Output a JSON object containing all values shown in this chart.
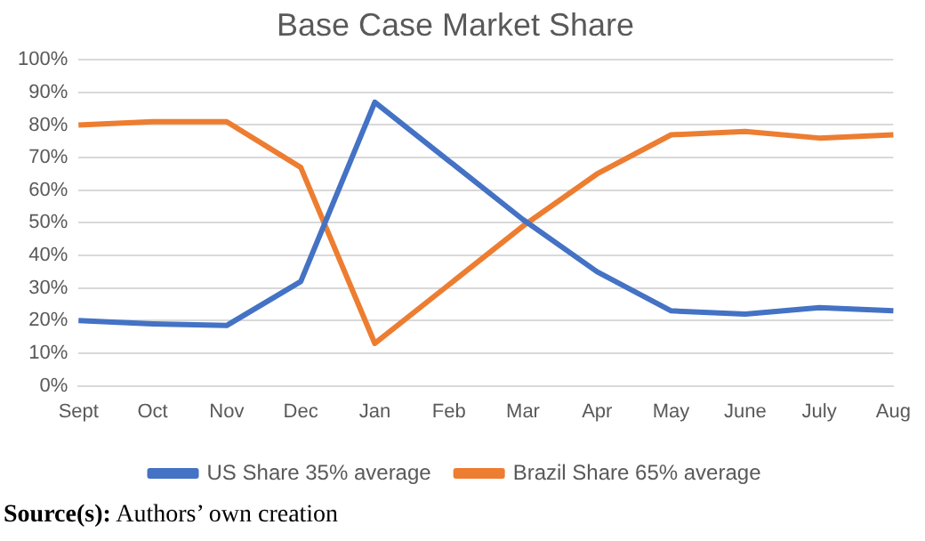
{
  "chart_data": {
    "type": "line",
    "title": "Base Case Market Share",
    "categories": [
      "Sept",
      "Oct",
      "Nov",
      "Dec",
      "Jan",
      "Feb",
      "Mar",
      "Apr",
      "May",
      "June",
      "July",
      "Aug"
    ],
    "series": [
      {
        "name": "US Share 35% average",
        "color": "#4472c4",
        "values": [
          20,
          19,
          18.5,
          32,
          87,
          69,
          51,
          35,
          23,
          22,
          24,
          23
        ]
      },
      {
        "name": "Brazil Share 65% average",
        "color": "#ed7d31",
        "values": [
          80,
          81,
          81,
          67,
          13,
          31,
          49,
          65,
          77,
          78,
          76,
          77
        ]
      }
    ],
    "ylim": [
      0,
      100
    ],
    "yticks": [
      {
        "value": 0,
        "label": "0%"
      },
      {
        "value": 10,
        "label": "10%"
      },
      {
        "value": 20,
        "label": "20%"
      },
      {
        "value": 30,
        "label": "30%"
      },
      {
        "value": 40,
        "label": "40%"
      },
      {
        "value": 50,
        "label": "50%"
      },
      {
        "value": 60,
        "label": "60%"
      },
      {
        "value": 70,
        "label": "70%"
      },
      {
        "value": 80,
        "label": "80%"
      },
      {
        "value": 90,
        "label": "90%"
      },
      {
        "value": 100,
        "label": "100%"
      }
    ],
    "grid": "y",
    "legend": "bottom",
    "marker": "none",
    "line_style": "solid",
    "annotations": [
      "Source(s): Authors’ own creation"
    ]
  }
}
